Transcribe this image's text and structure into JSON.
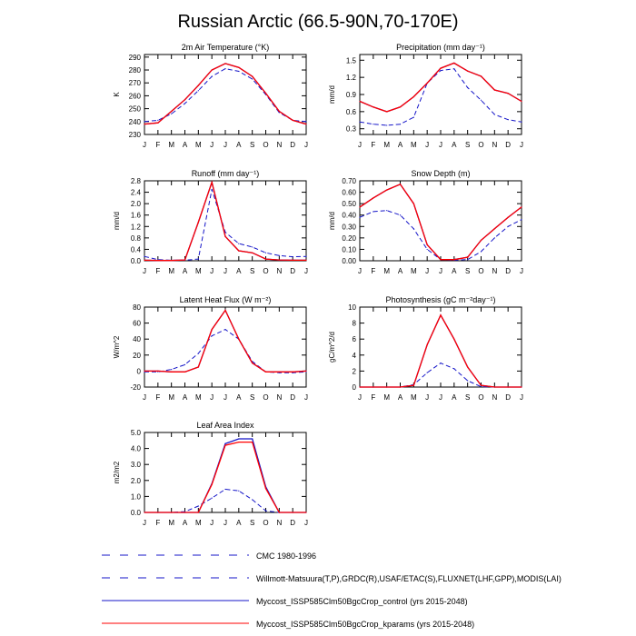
{
  "title": "Russian Arctic (66.5-90N,70-170E)",
  "months": [
    "J",
    "F",
    "M",
    "A",
    "M",
    "J",
    "J",
    "A",
    "S",
    "O",
    "N",
    "D",
    "J"
  ],
  "colors": {
    "obs": "#1515c8",
    "control": "#1515c8",
    "kparams": "#ff0000",
    "axis": "#000000"
  },
  "legend": [
    {
      "label": "CMC 1980-1996",
      "style": "dashed",
      "color": "#1515c8"
    },
    {
      "label": "Willmott-Matsuura(T,P),GRDC(R),USAF/ETAC(S),FLUXNET(LHF,GPP),MODIS(LAI)",
      "style": "dashed",
      "color": "#1515c8"
    },
    {
      "label": "Myccost_ISSP585Clm50BgcCrop_control (yrs 2015-2048)",
      "style": "solid",
      "color": "#1515c8"
    },
    {
      "label": "Myccost_ISSP585Clm50BgcCrop_kparams (yrs 2015-2048)",
      "style": "solid",
      "color": "#ff0000"
    }
  ],
  "chart_data": [
    {
      "type": "line",
      "title": "2m Air Temperature (°K)",
      "ylabel": "K",
      "ylim": [
        230,
        292
      ],
      "yticks": [
        230,
        240,
        250,
        260,
        270,
        280,
        290
      ],
      "ytick_labels": [
        "230",
        "240",
        "250",
        "260",
        "270",
        "280",
        "290"
      ],
      "x": [
        "J",
        "F",
        "M",
        "A",
        "M",
        "J",
        "J",
        "A",
        "S",
        "O",
        "N",
        "D",
        "J"
      ],
      "series": [
        {
          "role": "obs",
          "values": [
            240,
            241,
            246,
            254,
            264,
            275,
            281,
            279,
            273,
            261,
            247,
            241,
            240
          ]
        },
        {
          "role": "control",
          "values": [
            238,
            239,
            248,
            257,
            268,
            280,
            285,
            282,
            275,
            262,
            248,
            241,
            238
          ]
        },
        {
          "role": "kparams",
          "values": [
            238,
            239,
            248,
            257,
            268,
            280,
            285,
            282,
            275,
            262,
            248,
            241,
            238
          ]
        }
      ]
    },
    {
      "type": "line",
      "title": "Precipitation (mm day⁻¹)",
      "ylabel": "mm/d",
      "ylim": [
        0.2,
        1.6
      ],
      "yticks": [
        0.3,
        0.6,
        0.9,
        1.2,
        1.5
      ],
      "ytick_labels": [
        "0.3",
        "0.6",
        "0.9",
        "1.2",
        "1.5"
      ],
      "x": [
        "J",
        "F",
        "M",
        "A",
        "M",
        "J",
        "J",
        "A",
        "S",
        "O",
        "N",
        "D",
        "J"
      ],
      "series": [
        {
          "role": "obs",
          "values": [
            0.42,
            0.38,
            0.36,
            0.38,
            0.5,
            1.1,
            1.32,
            1.35,
            1.02,
            0.8,
            0.55,
            0.46,
            0.42
          ]
        },
        {
          "role": "control",
          "values": [
            0.78,
            0.68,
            0.6,
            0.68,
            0.86,
            1.1,
            1.36,
            1.45,
            1.31,
            1.22,
            0.98,
            0.92,
            0.78
          ]
        },
        {
          "role": "kparams",
          "values": [
            0.78,
            0.68,
            0.6,
            0.68,
            0.86,
            1.1,
            1.36,
            1.45,
            1.31,
            1.22,
            0.98,
            0.92,
            0.78
          ]
        }
      ]
    },
    {
      "type": "line",
      "title": "Runoff (mm day⁻¹)",
      "ylabel": "mm/d",
      "ylim": [
        0.0,
        2.8
      ],
      "yticks": [
        0.0,
        0.4,
        0.8,
        1.2,
        1.6,
        2.0,
        2.4,
        2.8
      ],
      "ytick_labels": [
        "0.0",
        "0.4",
        "0.8",
        "1.2",
        "1.6",
        "2.0",
        "2.4",
        "2.8"
      ],
      "x": [
        "J",
        "F",
        "M",
        "A",
        "M",
        "J",
        "J",
        "A",
        "S",
        "O",
        "N",
        "D",
        "J"
      ],
      "series": [
        {
          "role": "obs",
          "values": [
            0.15,
            0.04,
            0.02,
            0.02,
            0.06,
            2.5,
            1.0,
            0.6,
            0.48,
            0.28,
            0.18,
            0.14,
            0.15
          ]
        },
        {
          "role": "control",
          "values": [
            0.02,
            0.01,
            0.01,
            0.03,
            1.35,
            2.75,
            0.85,
            0.35,
            0.28,
            0.06,
            0.03,
            0.02,
            0.02
          ]
        },
        {
          "role": "kparams",
          "values": [
            0.02,
            0.01,
            0.01,
            0.03,
            1.35,
            2.75,
            0.85,
            0.35,
            0.28,
            0.06,
            0.03,
            0.02,
            0.02
          ]
        }
      ]
    },
    {
      "type": "line",
      "title": "Snow Depth (m)",
      "ylabel": "mm/d",
      "ylim": [
        0.0,
        0.7
      ],
      "yticks": [
        0.0,
        0.1,
        0.2,
        0.3,
        0.4,
        0.5,
        0.6,
        0.7
      ],
      "ytick_labels": [
        "0.00",
        "0.10",
        "0.20",
        "0.30",
        "0.40",
        "0.50",
        "0.60",
        "0.70"
      ],
      "x": [
        "J",
        "F",
        "M",
        "A",
        "M",
        "J",
        "J",
        "A",
        "S",
        "O",
        "N",
        "D",
        "J"
      ],
      "series": [
        {
          "role": "obs",
          "values": [
            0.38,
            0.43,
            0.44,
            0.4,
            0.28,
            0.1,
            0.01,
            0.005,
            0.01,
            0.08,
            0.2,
            0.3,
            0.36
          ]
        },
        {
          "role": "control",
          "values": [
            0.47,
            0.55,
            0.62,
            0.67,
            0.5,
            0.14,
            0.01,
            0.01,
            0.03,
            0.18,
            0.28,
            0.38,
            0.47
          ]
        },
        {
          "role": "kparams",
          "values": [
            0.47,
            0.55,
            0.62,
            0.67,
            0.5,
            0.14,
            0.01,
            0.01,
            0.03,
            0.18,
            0.28,
            0.38,
            0.47
          ]
        }
      ]
    },
    {
      "type": "line",
      "title": "Latent Heat Flux (W m⁻²)",
      "ylabel": "W/m^2",
      "ylim": [
        -20,
        80
      ],
      "yticks": [
        -20,
        0,
        20,
        40,
        60,
        80
      ],
      "ytick_labels": [
        "-20",
        "0",
        "20",
        "40",
        "60",
        "80"
      ],
      "x": [
        "J",
        "F",
        "M",
        "A",
        "M",
        "J",
        "J",
        "A",
        "S",
        "O",
        "N",
        "D",
        "J"
      ],
      "series": [
        {
          "role": "obs",
          "values": [
            -1,
            -1,
            2,
            8,
            22,
            44,
            52,
            40,
            12,
            -1,
            -2,
            -2,
            -1
          ]
        },
        {
          "role": "control",
          "values": [
            0,
            0,
            -1,
            -1,
            5,
            52,
            76,
            40,
            10,
            -1,
            -1,
            -1,
            0
          ]
        },
        {
          "role": "kparams",
          "values": [
            0,
            0,
            -1,
            -1,
            5,
            52,
            76,
            40,
            10,
            -1,
            -1,
            -1,
            0
          ]
        }
      ]
    },
    {
      "type": "line",
      "title": "Photosynthesis (gC m⁻²day⁻¹)",
      "ylabel": "gC/m^2/d",
      "ylim": [
        0,
        10
      ],
      "yticks": [
        0,
        2,
        4,
        6,
        8,
        10
      ],
      "ytick_labels": [
        "0",
        "2",
        "4",
        "6",
        "8",
        "10"
      ],
      "x": [
        "J",
        "F",
        "M",
        "A",
        "M",
        "J",
        "J",
        "A",
        "S",
        "O",
        "N",
        "D",
        "J"
      ],
      "series": [
        {
          "role": "obs",
          "values": [
            0,
            0,
            0,
            0,
            0.3,
            1.8,
            3.0,
            2.3,
            0.8,
            0.05,
            0,
            0,
            0
          ]
        },
        {
          "role": "control",
          "values": [
            0,
            0,
            0,
            0,
            0.2,
            5.3,
            9.0,
            6.0,
            2.5,
            0.2,
            0,
            0,
            0
          ]
        },
        {
          "role": "kparams",
          "values": [
            0,
            0,
            0,
            0,
            0.2,
            5.3,
            9.0,
            6.0,
            2.5,
            0.2,
            0,
            0,
            0
          ]
        }
      ]
    },
    {
      "type": "line",
      "title": "Leaf Area Index",
      "ylabel": "m2/m2",
      "ylim": [
        0,
        5
      ],
      "yticks": [
        0,
        1,
        2,
        3,
        4,
        5
      ],
      "ytick_labels": [
        "0.0",
        "1.0",
        "2.0",
        "3.0",
        "4.0",
        "5.0"
      ],
      "x": [
        "J",
        "F",
        "M",
        "A",
        "M",
        "J",
        "J",
        "A",
        "S",
        "O",
        "N",
        "D",
        "J"
      ],
      "series": [
        {
          "role": "obs",
          "values": [
            0,
            0,
            0,
            0.05,
            0.4,
            0.9,
            1.45,
            1.35,
            0.8,
            0.1,
            0,
            0,
            0
          ]
        },
        {
          "role": "control",
          "values": [
            0,
            0,
            0,
            0,
            0,
            1.8,
            4.3,
            4.6,
            4.6,
            1.6,
            0,
            0,
            0
          ]
        },
        {
          "role": "kparams",
          "values": [
            0,
            0,
            0,
            0,
            0,
            1.75,
            4.2,
            4.4,
            4.4,
            1.5,
            0,
            0,
            0
          ]
        }
      ]
    }
  ]
}
